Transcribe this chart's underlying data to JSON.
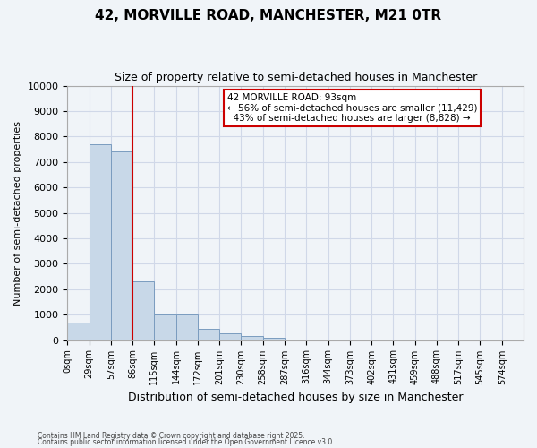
{
  "title": "42, MORVILLE ROAD, MANCHESTER, M21 0TR",
  "subtitle": "Size of property relative to semi-detached houses in Manchester",
  "xlabel": "Distribution of semi-detached houses by size in Manchester",
  "ylabel": "Number of semi-detached properties",
  "footnote1": "Contains HM Land Registry data © Crown copyright and database right 2025.",
  "footnote2": "Contains public sector information licensed under the Open Government Licence v3.0.",
  "bin_labels": [
    "0sqm",
    "29sqm",
    "57sqm",
    "86sqm",
    "115sqm",
    "144sqm",
    "172sqm",
    "201sqm",
    "230sqm",
    "258sqm",
    "287sqm",
    "316sqm",
    "344sqm",
    "373sqm",
    "402sqm",
    "431sqm",
    "459sqm",
    "488sqm",
    "517sqm",
    "545sqm",
    "574sqm"
  ],
  "bar_values": [
    700,
    7700,
    7400,
    2300,
    1000,
    1000,
    450,
    250,
    150,
    100,
    0,
    0,
    0,
    0,
    0,
    0,
    0,
    0,
    0,
    0,
    0
  ],
  "bar_color": "#c8d8e8",
  "bar_edge_color": "#7a9cbf",
  "vline_x": 3,
  "vline_color": "#cc0000",
  "property_label": "42 MORVILLE ROAD: 93sqm",
  "pct_smaller": "56% of semi-detached houses are smaller (11,429)",
  "pct_larger": "43% of semi-detached houses are larger (8,828)",
  "ylim": [
    0,
    10000
  ],
  "yticks": [
    0,
    1000,
    2000,
    3000,
    4000,
    5000,
    6000,
    7000,
    8000,
    9000,
    10000
  ],
  "annotation_box_color": "#cc0000",
  "grid_color": "#d0d8e8",
  "bg_color": "#f0f4f8"
}
